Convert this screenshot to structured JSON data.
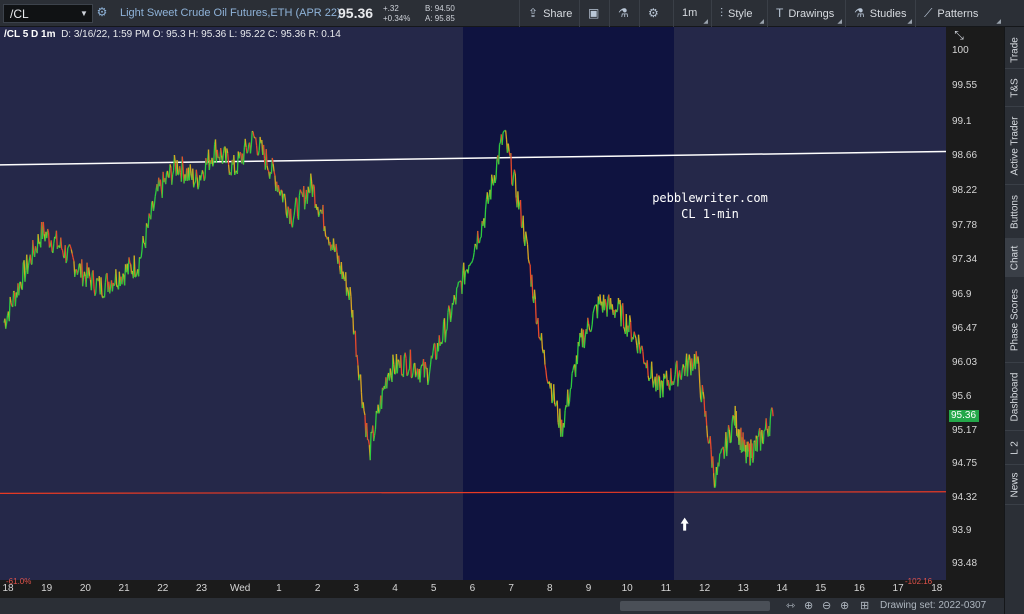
{
  "toolbar": {
    "symbol": "/CL",
    "instrument": "Light Sweet Crude Oil Futures,ETH (APR 22)",
    "last": "95.36",
    "net_change": "+.32",
    "pct_change": "+0.34%",
    "bid": "B: 94.50",
    "ask": "A: 95.85",
    "share": "Share",
    "interval": "1m",
    "style": "Style",
    "drawings": "Drawings",
    "studies": "Studies",
    "patterns": "Patterns"
  },
  "chart_header": {
    "label": "/CL 5 D 1m",
    "date": "D: 3/16/22, 1:59 PM",
    "open": "O: 95.3",
    "high": "H: 95.36",
    "low": "L: 95.22",
    "close": "C: 95.36",
    "range": "R: 0.14"
  },
  "watermark": {
    "line1": "pebblewriter.com",
    "line2": "CL 1-min"
  },
  "last_price_tag": "95.36",
  "colors": {
    "background": "#252849",
    "session": "#0f1340",
    "resistance": "#ffffff",
    "support": "#e83a24",
    "up": "#2ecc40",
    "down": "#e8492b",
    "last_tag": "#24a84a"
  },
  "right_tabs": [
    "Trade",
    "T&S",
    "Active Trader",
    "Buttons",
    "Chart",
    "Phase Scores",
    "Dashboard",
    "L 2",
    "News"
  ],
  "bottom": {
    "drawing_set": "Drawing set: 2022-0307"
  },
  "chart_data": {
    "type": "line",
    "title": "",
    "ylim": [
      93.28,
      100.3
    ],
    "y_ticks": [
      100,
      99.55,
      99.1,
      98.66,
      98.22,
      97.78,
      97.34,
      96.9,
      96.47,
      96.03,
      95.6,
      95.17,
      94.75,
      94.32,
      93.9,
      93.48
    ],
    "x_ticks": [
      "18",
      "19",
      "20",
      "21",
      "22",
      "23",
      "Wed",
      "1",
      "2",
      "3",
      "4",
      "5",
      "6",
      "7",
      "8",
      "9",
      "10",
      "11",
      "12",
      "13",
      "14",
      "15",
      "16",
      "17",
      "18"
    ],
    "x": [
      0,
      0.5,
      1,
      1.5,
      2,
      2.5,
      3,
      3.5,
      4,
      4.5,
      5,
      5.5,
      6,
      6.5,
      7,
      7.5,
      8,
      8.5,
      9,
      9.5,
      10,
      10.5,
      11,
      11.5,
      12,
      12.5,
      13,
      13.5,
      14,
      14.5,
      15,
      15.5,
      16,
      16.5,
      17,
      17.5,
      18,
      18.5,
      19,
      19.3,
      19.6,
      20
    ],
    "series": [
      {
        "values": [
          96.55,
          97.15,
          97.7,
          97.5,
          97.2,
          97.0,
          97.15,
          97.3,
          98.2,
          98.55,
          98.35,
          98.75,
          98.5,
          98.9,
          98.45,
          97.9,
          98.3,
          97.6,
          96.9,
          94.9,
          95.95,
          96.05,
          95.9,
          96.5,
          97.2,
          97.9,
          98.95,
          97.8,
          96.2,
          95.2,
          96.3,
          96.8,
          96.7,
          96.3,
          95.7,
          95.9,
          96.1,
          94.55,
          95.35,
          94.85,
          95.0,
          95.36
        ]
      }
    ],
    "lines": [
      {
        "name": "resistance",
        "y_start": 98.55,
        "y_end": 98.72
      },
      {
        "name": "support",
        "y_start": 94.38,
        "y_end": 94.4
      }
    ],
    "highlight_region_x": [
      12,
      17.5
    ],
    "arrow_marker": {
      "x": 17.7,
      "y": 93.97
    },
    "grid": false
  }
}
